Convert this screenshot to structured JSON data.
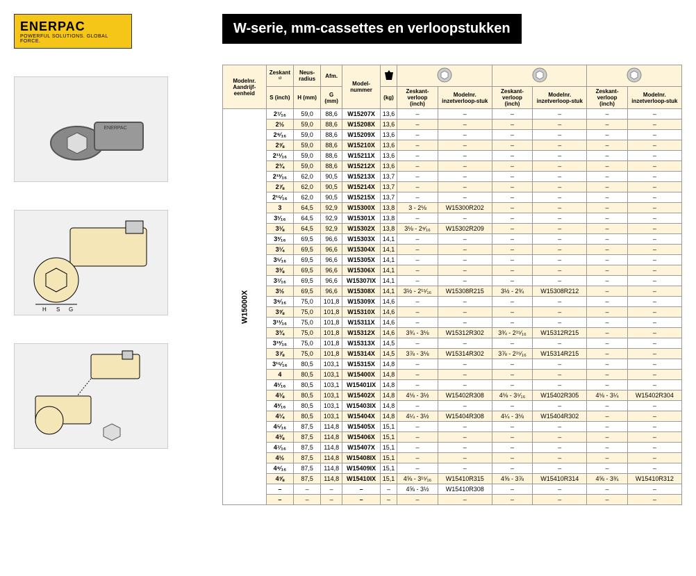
{
  "logo": {
    "main": "ENERPAC",
    "sub": "POWERFUL SOLUTIONS. GLOBAL FORCE."
  },
  "title": "W-serie, mm-cassettes en verloopstukken",
  "rowLabel": "W15000X",
  "headers": {
    "col1": "Modelnr. Aandrijf-eenheid",
    "col2": "Zeskant ¹⁾",
    "col2sub": "S (inch)",
    "col3": "Neus-radius",
    "col3sub": "H (mm)",
    "col4": "Afm.",
    "col4sub": "G (mm)",
    "col5": "Model-nummer",
    "col6sub": "(kg)",
    "pair1a": "Zeskant-verloop (inch)",
    "pair1b": "Modelnr. inzetverloop-stuk",
    "pair2a": "Zeskant-verloop (inch)",
    "pair2b": "Modelnr. inzetverloop-stuk",
    "pair3a": "Zeskant-verloop (inch)",
    "pair3b": "Modelnr. inzetverloop-stuk"
  },
  "rows": [
    {
      "s": "2⁷⁄₁₆",
      "h": "59,0",
      "g": "88,6",
      "model": "W15207X",
      "kg": "13,6",
      "a1": "–",
      "b1": "–",
      "a2": "–",
      "b2": "–",
      "a3": "–",
      "b3": "–"
    },
    {
      "s": "2½",
      "h": "59,0",
      "g": "88,6",
      "model": "W15208X",
      "kg": "13,6",
      "a1": "–",
      "b1": "–",
      "a2": "–",
      "b2": "–",
      "a3": "–",
      "b3": "–"
    },
    {
      "s": "2⁹⁄₁₆",
      "h": "59,0",
      "g": "88,6",
      "model": "W15209X",
      "kg": "13,6",
      "a1": "–",
      "b1": "–",
      "a2": "–",
      "b2": "–",
      "a3": "–",
      "b3": "–"
    },
    {
      "s": "2⅝",
      "h": "59,0",
      "g": "88,6",
      "model": "W15210X",
      "kg": "13,6",
      "a1": "–",
      "b1": "–",
      "a2": "–",
      "b2": "–",
      "a3": "–",
      "b3": "–"
    },
    {
      "s": "2¹¹⁄₁₆",
      "h": "59,0",
      "g": "88,6",
      "model": "W15211X",
      "kg": "13,6",
      "a1": "–",
      "b1": "–",
      "a2": "–",
      "b2": "–",
      "a3": "–",
      "b3": "–"
    },
    {
      "s": "2¾",
      "h": "59,0",
      "g": "88,6",
      "model": "W15212X",
      "kg": "13,6",
      "a1": "–",
      "b1": "–",
      "a2": "–",
      "b2": "–",
      "a3": "–",
      "b3": "–"
    },
    {
      "s": "2¹³⁄₁₆",
      "h": "62,0",
      "g": "90,5",
      "model": "W15213X",
      "kg": "13,7",
      "a1": "–",
      "b1": "–",
      "a2": "–",
      "b2": "–",
      "a3": "–",
      "b3": "–"
    },
    {
      "s": "2⅞",
      "h": "62,0",
      "g": "90,5",
      "model": "W15214X",
      "kg": "13,7",
      "a1": "–",
      "b1": "–",
      "a2": "–",
      "b2": "–",
      "a3": "–",
      "b3": "–"
    },
    {
      "s": "2¹⁵⁄₁₆",
      "h": "62,0",
      "g": "90,5",
      "model": "W15215X",
      "kg": "13,7",
      "a1": "–",
      "b1": "–",
      "a2": "–",
      "b2": "–",
      "a3": "–",
      "b3": "–"
    },
    {
      "s": "3",
      "h": "64,5",
      "g": "92,9",
      "model": "W15300X",
      "kg": "13,8",
      "a1": "3 - 2⅛",
      "b1": "W15300R202",
      "a2": "–",
      "b2": "–",
      "a3": "–",
      "b3": "–"
    },
    {
      "s": "3¹⁄₁₆",
      "h": "64,5",
      "g": "92,9",
      "model": "W15301X",
      "kg": "13,8",
      "a1": "–",
      "b1": "–",
      "a2": "–",
      "b2": "–",
      "a3": "–",
      "b3": "–"
    },
    {
      "s": "3⅛",
      "h": "64,5",
      "g": "92,9",
      "model": "W15302X",
      "kg": "13,8",
      "a1": "3⅛ - 2⁹⁄₁₆",
      "b1": "W15302R209",
      "a2": "–",
      "b2": "–",
      "a3": "–",
      "b3": "–"
    },
    {
      "s": "3³⁄₁₆",
      "h": "69,5",
      "g": "96,6",
      "model": "W15303X",
      "kg": "14,1",
      "a1": "–",
      "b1": "–",
      "a2": "–",
      "b2": "–",
      "a3": "–",
      "b3": "–"
    },
    {
      "s": "3¼",
      "h": "69,5",
      "g": "96,6",
      "model": "W15304X",
      "kg": "14,1",
      "a1": "–",
      "b1": "–",
      "a2": "–",
      "b2": "–",
      "a3": "–",
      "b3": "–"
    },
    {
      "s": "3⁵⁄₁₆",
      "h": "69,5",
      "g": "96,6",
      "model": "W15305X",
      "kg": "14,1",
      "a1": "–",
      "b1": "–",
      "a2": "–",
      "b2": "–",
      "a3": "–",
      "b3": "–"
    },
    {
      "s": "3⅜",
      "h": "69,5",
      "g": "96,6",
      "model": "W15306X",
      "kg": "14,1",
      "a1": "–",
      "b1": "–",
      "a2": "–",
      "b2": "–",
      "a3": "–",
      "b3": "–"
    },
    {
      "s": "3⁷⁄₁₆",
      "h": "69,5",
      "g": "96,6",
      "model": "W15307IX",
      "kg": "14,1",
      "a1": "–",
      "b1": "–",
      "a2": "–",
      "b2": "–",
      "a3": "–",
      "b3": "–"
    },
    {
      "s": "3½",
      "h": "69,5",
      "g": "96,6",
      "model": "W15308X",
      "kg": "14,1",
      "a1": "3½ - 2¹⁵⁄₁₆",
      "b1": "W15308R215",
      "a2": "3½ - 2¾",
      "b2": "W15308R212",
      "a3": "–",
      "b3": "–"
    },
    {
      "s": "3⁹⁄₁₆",
      "h": "75,0",
      "g": "101,8",
      "model": "W15309X",
      "kg": "14,6",
      "a1": "–",
      "b1": "–",
      "a2": "–",
      "b2": "–",
      "a3": "–",
      "b3": "–"
    },
    {
      "s": "3⅝",
      "h": "75,0",
      "g": "101,8",
      "model": "W15310X",
      "kg": "14,6",
      "a1": "–",
      "b1": "–",
      "a2": "–",
      "b2": "–",
      "a3": "–",
      "b3": "–"
    },
    {
      "s": "3¹¹⁄₁₆",
      "h": "75,0",
      "g": "101,8",
      "model": "W15311X",
      "kg": "14,6",
      "a1": "–",
      "b1": "–",
      "a2": "–",
      "b2": "–",
      "a3": "–",
      "b3": "–"
    },
    {
      "s": "3¾",
      "h": "75,0",
      "g": "101,8",
      "model": "W15312X",
      "kg": "14,6",
      "a1": "3¾ - 3⅛",
      "b1": "W15312R302",
      "a2": "3¾ - 2¹⁵⁄₁₆",
      "b2": "W15312R215",
      "a3": "–",
      "b3": "–"
    },
    {
      "s": "3¹³⁄₁₆",
      "h": "75,0",
      "g": "101,8",
      "model": "W15313X",
      "kg": "14,5",
      "a1": "–",
      "b1": "–",
      "a2": "–",
      "b2": "–",
      "a3": "–",
      "b3": "–"
    },
    {
      "s": "3⅞",
      "h": "75,0",
      "g": "101,8",
      "model": "W15314X",
      "kg": "14,5",
      "a1": "3⅞ - 3⅛",
      "b1": "W15314R302",
      "a2": "3⅞ - 2¹⁵⁄₁₆",
      "b2": "W15314R215",
      "a3": "–",
      "b3": "–"
    },
    {
      "s": "3¹⁵⁄₁₆",
      "h": "80,5",
      "g": "103,1",
      "model": "W15315X",
      "kg": "14,8",
      "a1": "–",
      "b1": "–",
      "a2": "–",
      "b2": "–",
      "a3": "–",
      "b3": "–"
    },
    {
      "s": "4",
      "h": "80,5",
      "g": "103,1",
      "model": "W15400X",
      "kg": "14,8",
      "a1": "–",
      "b1": "–",
      "a2": "–",
      "b2": "–",
      "a3": "–",
      "b3": "–"
    },
    {
      "s": "4¹⁄₁₆",
      "h": "80,5",
      "g": "103,1",
      "model": "W15401IX",
      "kg": "14,8",
      "a1": "–",
      "b1": "–",
      "a2": "–",
      "b2": "–",
      "a3": "–",
      "b3": "–"
    },
    {
      "s": "4⅛",
      "h": "80,5",
      "g": "103,1",
      "model": "W15402X",
      "kg": "14,8",
      "a1": "4⅛ - 3½",
      "b1": "W15402R308",
      "a2": "4⅛ - 3⁵⁄₁₆",
      "b2": "W15402R305",
      "a3": "4⅛ - 3¼",
      "b3": "W15402R304"
    },
    {
      "s": "4³⁄₁₆",
      "h": "80,5",
      "g": "103,1",
      "model": "W15403IX",
      "kg": "14,8",
      "a1": "–",
      "b1": "–",
      "a2": "–",
      "b2": "–",
      "a3": "–",
      "b3": "–"
    },
    {
      "s": "4¼",
      "h": "80,5",
      "g": "103,1",
      "model": "W15404X",
      "kg": "14,8",
      "a1": "4¼ - 3½",
      "b1": "W15404R308",
      "a2": "4¼ - 3⅛",
      "b2": "W15404R302",
      "a3": "–",
      "b3": "–"
    },
    {
      "s": "4⁵⁄₁₆",
      "h": "87,5",
      "g": "114,8",
      "model": "W15405X",
      "kg": "15,1",
      "a1": "–",
      "b1": "–",
      "a2": "–",
      "b2": "–",
      "a3": "–",
      "b3": "–"
    },
    {
      "s": "4⅜",
      "h": "87,5",
      "g": "114,8",
      "model": "W15406X",
      "kg": "15,1",
      "a1": "–",
      "b1": "–",
      "a2": "–",
      "b2": "–",
      "a3": "–",
      "b3": "–"
    },
    {
      "s": "4⁷⁄₁₆",
      "h": "87,5",
      "g": "114,8",
      "model": "W15407X",
      "kg": "15,1",
      "a1": "–",
      "b1": "–",
      "a2": "–",
      "b2": "–",
      "a3": "–",
      "b3": "–"
    },
    {
      "s": "4½",
      "h": "87,5",
      "g": "114,8",
      "model": "W15408IX",
      "kg": "15,1",
      "a1": "–",
      "b1": "–",
      "a2": "–",
      "b2": "–",
      "a3": "–",
      "b3": "–"
    },
    {
      "s": "4⁹⁄₁₆",
      "h": "87,5",
      "g": "114,8",
      "model": "W15409IX",
      "kg": "15,1",
      "a1": "–",
      "b1": "–",
      "a2": "–",
      "b2": "–",
      "a3": "–",
      "b3": "–"
    },
    {
      "s": "4⅝",
      "h": "87,5",
      "g": "114,8",
      "model": "W15410IX",
      "kg": "15,1",
      "a1": "4⅝ - 3¹⁵⁄₁₆",
      "b1": "W15410R315",
      "a2": "4⅝ - 3⅞",
      "b2": "W15410R314",
      "a3": "4⅝ - 3¾",
      "b3": "W15410R312"
    },
    {
      "s": "–",
      "h": "–",
      "g": "–",
      "model": "–",
      "kg": "–",
      "a1": "4⅝ - 3½",
      "b1": "W15410R308",
      "a2": "–",
      "b2": "–",
      "a3": "–",
      "b3": "–"
    },
    {
      "s": "–",
      "h": "–",
      "g": "–",
      "model": "–",
      "kg": "–",
      "a1": "–",
      "b1": "–",
      "a2": "–",
      "b2": "–",
      "a3": "–",
      "b3": "–"
    }
  ]
}
